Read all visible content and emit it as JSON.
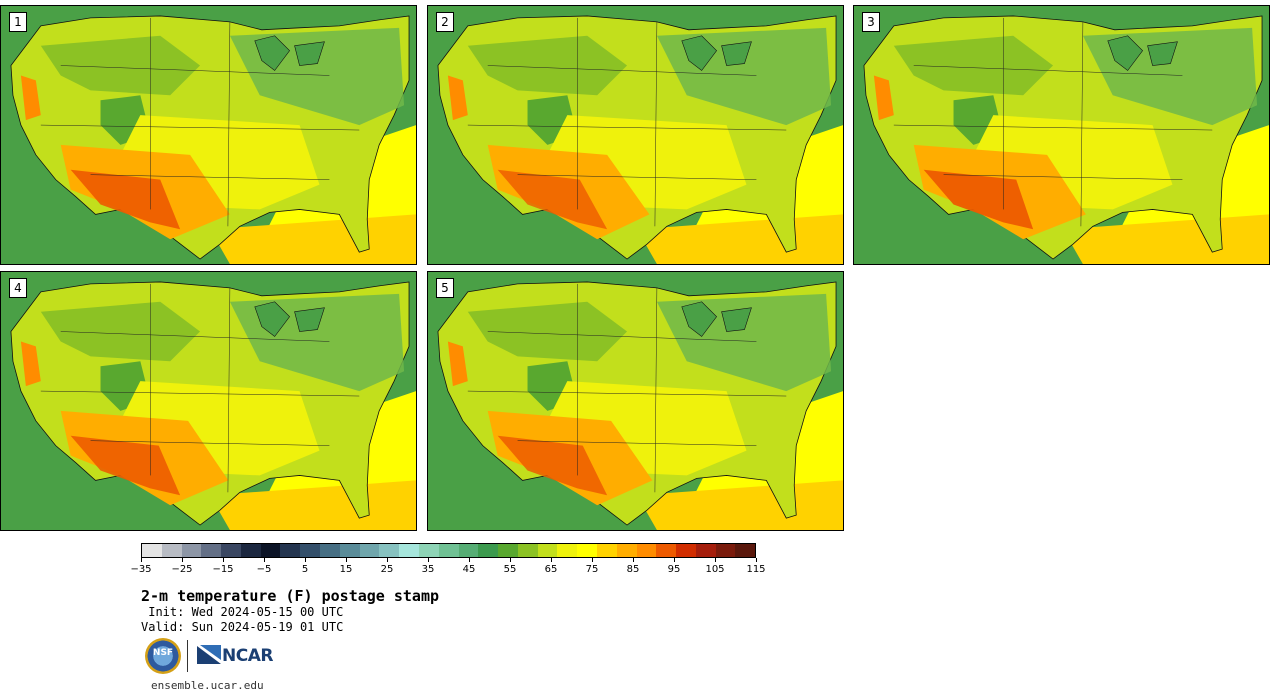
{
  "panels": [
    {
      "label": "1",
      "heat": 1.0
    },
    {
      "label": "2",
      "heat": 0.75
    },
    {
      "label": "3",
      "heat": 1.1
    },
    {
      "label": "4",
      "heat": 0.95
    },
    {
      "label": "5",
      "heat": 0.85
    }
  ],
  "colorbar": {
    "colors": [
      "#e4e4e4",
      "#b8bcc4",
      "#8d96a6",
      "#636f86",
      "#3a4762",
      "#1c2840",
      "#0c1426",
      "#24354f",
      "#34506b",
      "#466e83",
      "#5a8c99",
      "#70a6ac",
      "#87c2c0",
      "#a6e6dc",
      "#8ed4b6",
      "#70c194",
      "#56ad74",
      "#3c9a4e",
      "#59a82f",
      "#8cc224",
      "#c2df1c",
      "#eff20c",
      "#ffff00",
      "#ffd200",
      "#ffad00",
      "#ff8c00",
      "#ed5a00",
      "#d12d00",
      "#a51e0c",
      "#7a1b0c",
      "#5a180c"
    ],
    "tick_labels": [
      "−35",
      "−25",
      "−15",
      "−5",
      "5",
      "15",
      "25",
      "35",
      "45",
      "55",
      "65",
      "75",
      "85",
      "95",
      "105",
      "115"
    ]
  },
  "title": "2-m temperature (F) postage stamp",
  "init": " Init: Wed 2024-05-15 00 UTC",
  "valid": "Valid: Sun 2024-05-19 01 UTC",
  "logos": {
    "nsf": "NSF",
    "ncar": "NCAR"
  },
  "website": "ensemble.ucar.edu"
}
